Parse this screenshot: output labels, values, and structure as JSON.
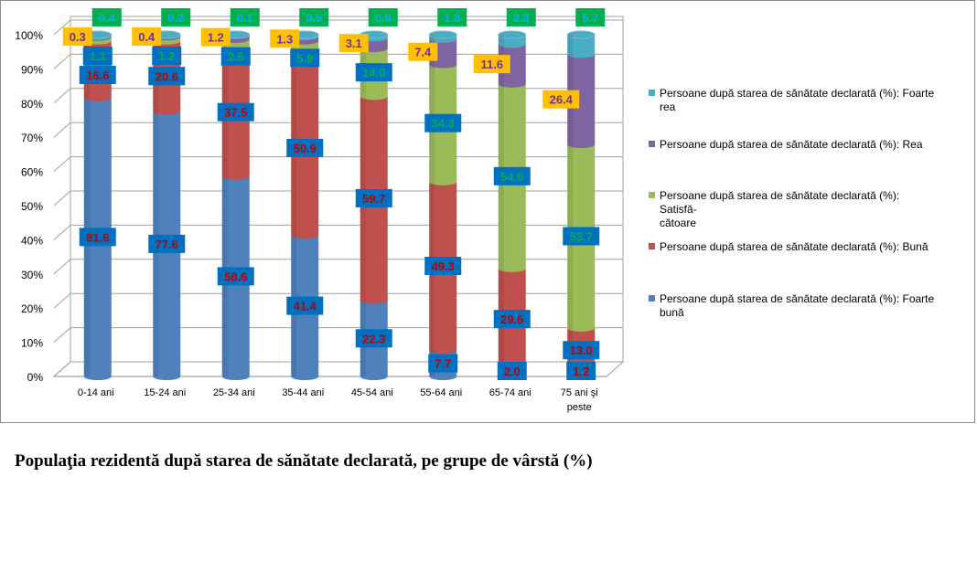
{
  "chart_data": {
    "type": "bar",
    "stacked": true,
    "percent": true,
    "categories": [
      "0-14 ani",
      "15-24 ani",
      "25-34 ani",
      "35-44 ani",
      "45-54 ani",
      "55-64 ani",
      "65-74 ani",
      "75 ani şi peste"
    ],
    "series": [
      {
        "name": "Persoane după starea de sănătate declarată (%): Foarte bună",
        "legend_lines": [
          "Persoane după starea de sănătate declarată (%): Foarte",
          "bună"
        ],
        "color": "#4f81bd",
        "label_bg": "#0070c0",
        "label_fg": "#c00000",
        "values": [
          81.6,
          77.6,
          58.6,
          41.4,
          22.3,
          7.7,
          2.0,
          1.2
        ]
      },
      {
        "name": "Persoane după starea de sănătate declarată (%): Bună",
        "legend_lines": [
          "Persoane după starea de sănătate declarată (%): Bună"
        ],
        "color": "#c0504d",
        "label_bg": "#0070c0",
        "label_fg": "#c00000",
        "values": [
          16.6,
          20.6,
          37.5,
          50.9,
          59.7,
          49.3,
          29.6,
          13.0
        ]
      },
      {
        "name": "Persoane după starea de sănătate declarată (%): Satisfăcătoare",
        "legend_lines": [
          "Persoane după starea de sănătate declarată (%):",
          "Satisfă-",
          "cătoare"
        ],
        "color": "#9bbb59",
        "label_bg": "#0070c0",
        "label_fg": "#00b050",
        "values": [
          1.1,
          1.2,
          2.6,
          5.9,
          14.0,
          34.3,
          54.0,
          53.7
        ]
      },
      {
        "name": "Persoane după starea de sănătate declarată (%): Rea",
        "legend_lines": [
          "Persoane după starea de sănătate declarată (%): Rea"
        ],
        "color": "#8064a2",
        "label_bg": "#ffc000",
        "label_fg": "#7030a0",
        "values": [
          0.3,
          0.4,
          1.2,
          1.3,
          3.1,
          7.4,
          11.6,
          26.4
        ]
      },
      {
        "name": "Persoane după starea de sănătate declarată (%): Foarte rea",
        "legend_lines": [
          "Persoane după starea de sănătate declarată (%): Foarte",
          "rea"
        ],
        "color": "#4bacc6",
        "label_bg": "#00b050",
        "label_fg": "#00b0f0",
        "values": [
          0.4,
          0.2,
          0.1,
          0.5,
          0.9,
          1.3,
          2.8,
          5.7
        ]
      }
    ],
    "yticks": [
      "0%",
      "10%",
      "20%",
      "30%",
      "40%",
      "50%",
      "60%",
      "70%",
      "80%",
      "90%",
      "100%"
    ],
    "ylim": [
      0,
      100
    ],
    "grid": true,
    "legend_position": "right",
    "title": "Populaţia rezidentă după starea de sănătate declarată, pe grupe de vârstă (%)"
  }
}
